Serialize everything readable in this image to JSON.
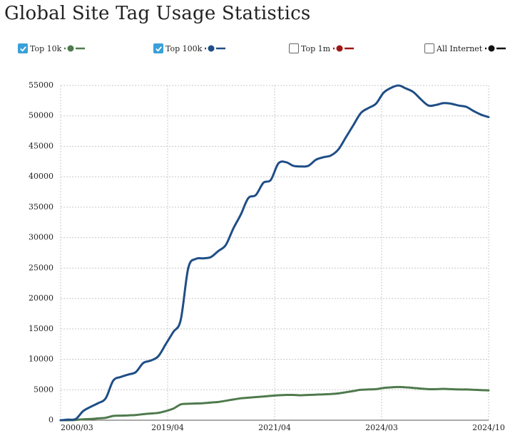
{
  "title": "Global Site Tag Usage Statistics",
  "legend": [
    {
      "label": "Top 10k",
      "checked": true,
      "color": "#4f7a4d"
    },
    {
      "label": "Top 100k",
      "checked": true,
      "color": "#1f4e86"
    },
    {
      "label": "Top 1m",
      "checked": false,
      "color": "#a01515"
    },
    {
      "label": "All Internet",
      "checked": false,
      "color": "#111111"
    }
  ],
  "chart_data": {
    "type": "line",
    "ylim": [
      0,
      55000
    ],
    "yticks": [
      0,
      5000,
      10000,
      15000,
      20000,
      25000,
      30000,
      35000,
      40000,
      45000,
      50000,
      55000
    ],
    "xtick_labels": [
      "2000/03",
      "2019/04",
      "2021/04",
      "2024/03",
      "2024/10"
    ],
    "grid": true,
    "series": [
      {
        "name": "Top 100k",
        "color": "#1f4e86",
        "values": [
          0,
          100,
          200,
          1500,
          2200,
          2800,
          3600,
          6500,
          7100,
          7500,
          7900,
          9400,
          9800,
          10500,
          12500,
          14500,
          16500,
          25000,
          26500,
          26600,
          26800,
          27800,
          28800,
          31500,
          33800,
          36500,
          37000,
          39000,
          39500,
          42200,
          42400,
          41800,
          41700,
          41800,
          42800,
          43200,
          43500,
          44500,
          46500,
          48500,
          50500,
          51300,
          52000,
          53800,
          54600,
          55000,
          54500,
          53900,
          52700,
          51700,
          51800,
          52100,
          52000,
          51700,
          51500,
          50800,
          50200,
          49800
        ]
      },
      {
        "name": "Top 10k",
        "color": "#4f7a4d",
        "values": [
          0,
          0,
          50,
          150,
          200,
          300,
          400,
          700,
          750,
          800,
          850,
          1000,
          1100,
          1200,
          1500,
          1900,
          2600,
          2700,
          2750,
          2800,
          2900,
          3000,
          3200,
          3400,
          3600,
          3700,
          3800,
          3900,
          4000,
          4100,
          4150,
          4150,
          4100,
          4150,
          4200,
          4250,
          4300,
          4400,
          4600,
          4800,
          5000,
          5050,
          5100,
          5300,
          5400,
          5450,
          5400,
          5300,
          5200,
          5100,
          5100,
          5150,
          5100,
          5050,
          5050,
          5000,
          4950,
          4900
        ]
      }
    ]
  }
}
